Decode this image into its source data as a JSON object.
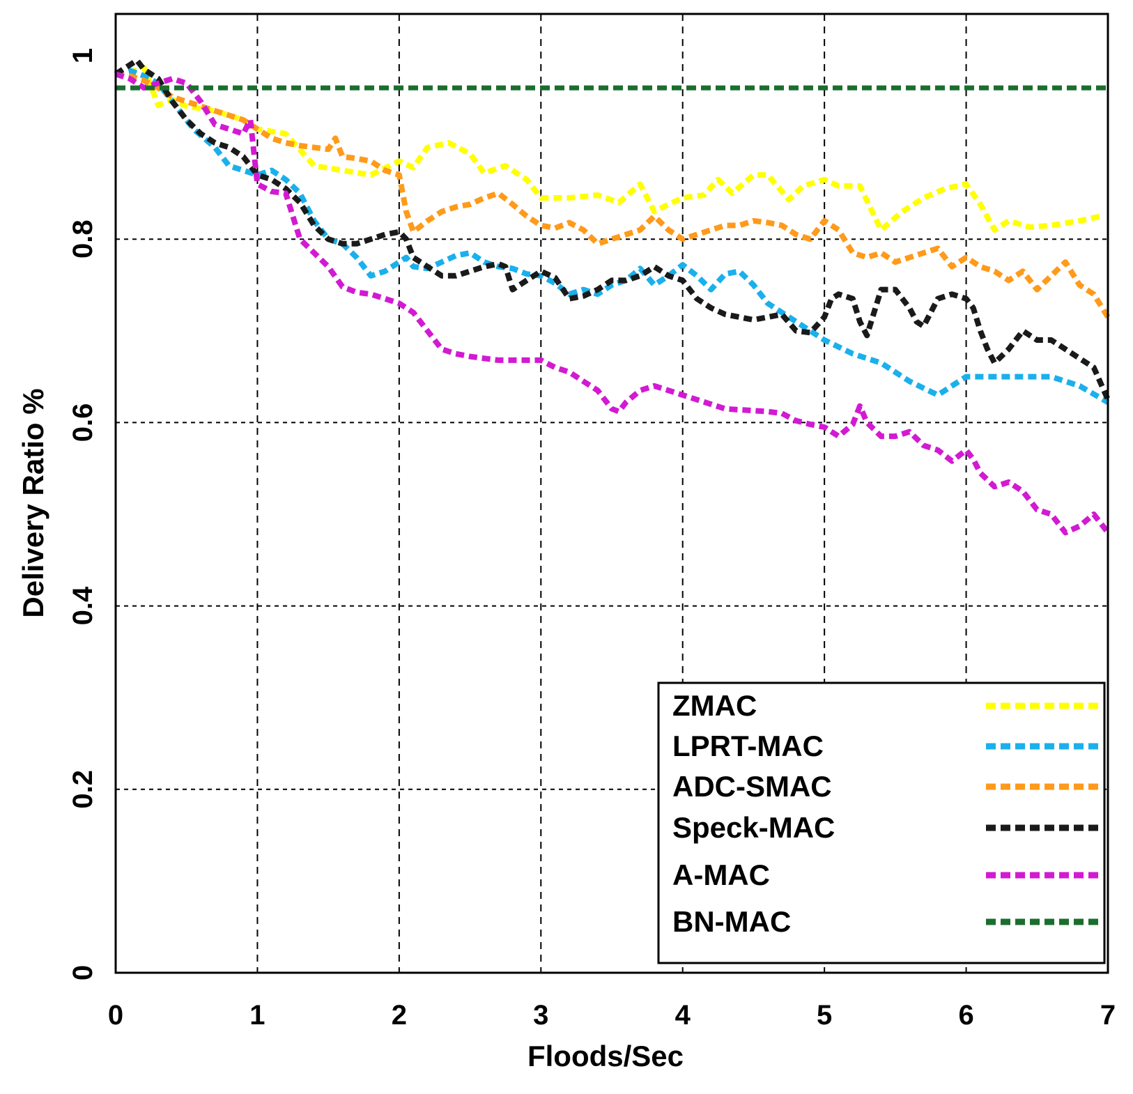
{
  "chart_data": {
    "type": "line",
    "title": "",
    "xlabel": "Floods/Sec",
    "ylabel": "Delivery Ratio %",
    "xlim": [
      0,
      7
    ],
    "ylim": [
      0,
      1.0
    ],
    "x_ticks": [
      "0",
      "1",
      "2",
      "3",
      "4",
      "5",
      "6",
      "7"
    ],
    "y_ticks": [
      "0",
      "0.2",
      "0.4",
      "0.6",
      "0.8",
      "1"
    ],
    "grid": true,
    "legend_position": "bottom-right",
    "series": [
      {
        "name": "ZMAC",
        "color": "#ffff00",
        "x": [
          0.0,
          0.1,
          0.2,
          0.3,
          0.4,
          0.5,
          0.7,
          0.9,
          1.0,
          1.2,
          1.4,
          1.6,
          1.8,
          2.0,
          2.1,
          2.2,
          2.35,
          2.5,
          2.6,
          2.75,
          2.9,
          3.0,
          3.2,
          3.4,
          3.55,
          3.7,
          3.8,
          3.9,
          4.0,
          4.15,
          4.25,
          4.35,
          4.5,
          4.6,
          4.75,
          4.85,
          5.0,
          5.1,
          5.25,
          5.4,
          5.55,
          5.7,
          5.85,
          6.0,
          6.1,
          6.2,
          6.3,
          6.45,
          6.6,
          6.8,
          6.95
        ],
        "values": [
          0.98,
          0.982,
          0.987,
          0.946,
          0.952,
          0.945,
          0.94,
          0.93,
          0.92,
          0.915,
          0.88,
          0.875,
          0.87,
          0.885,
          0.878,
          0.9,
          0.905,
          0.893,
          0.872,
          0.88,
          0.865,
          0.845,
          0.845,
          0.848,
          0.84,
          0.86,
          0.83,
          0.838,
          0.845,
          0.848,
          0.865,
          0.85,
          0.87,
          0.87,
          0.843,
          0.858,
          0.865,
          0.858,
          0.858,
          0.81,
          0.83,
          0.845,
          0.855,
          0.86,
          0.838,
          0.81,
          0.82,
          0.813,
          0.815,
          0.82,
          0.825
        ]
      },
      {
        "name": "LPRT-MAC",
        "color": "#1ab0ec",
        "x": [
          0.0,
          0.1,
          0.2,
          0.3,
          0.4,
          0.55,
          0.7,
          0.8,
          0.9,
          1.0,
          1.1,
          1.2,
          1.3,
          1.4,
          1.5,
          1.6,
          1.7,
          1.8,
          1.9,
          2.0,
          2.05,
          2.1,
          2.2,
          2.3,
          2.4,
          2.5,
          2.6,
          2.7,
          2.8,
          2.9,
          3.0,
          3.1,
          3.2,
          3.3,
          3.4,
          3.5,
          3.6,
          3.7,
          3.8,
          3.9,
          4.0,
          4.1,
          4.2,
          4.3,
          4.4,
          4.5,
          4.6,
          4.7,
          4.8,
          4.9,
          5.0,
          5.2,
          5.4,
          5.6,
          5.8,
          6.0,
          6.2,
          6.4,
          6.6,
          6.8,
          7.0
        ],
        "values": [
          0.98,
          0.984,
          0.978,
          0.97,
          0.95,
          0.92,
          0.9,
          0.88,
          0.875,
          0.87,
          0.875,
          0.865,
          0.85,
          0.82,
          0.8,
          0.795,
          0.78,
          0.76,
          0.765,
          0.775,
          0.78,
          0.77,
          0.768,
          0.775,
          0.782,
          0.785,
          0.775,
          0.77,
          0.768,
          0.762,
          0.76,
          0.752,
          0.74,
          0.745,
          0.74,
          0.75,
          0.755,
          0.768,
          0.75,
          0.76,
          0.772,
          0.76,
          0.745,
          0.762,
          0.765,
          0.75,
          0.73,
          0.72,
          0.71,
          0.7,
          0.69,
          0.675,
          0.665,
          0.645,
          0.63,
          0.65,
          0.65,
          0.65,
          0.65,
          0.64,
          0.622
        ]
      },
      {
        "name": "ADC-SMAC",
        "color": "#ff9a1a",
        "x": [
          0.0,
          0.1,
          0.2,
          0.3,
          0.4,
          0.5,
          0.6,
          0.7,
          0.8,
          0.9,
          1.0,
          1.1,
          1.2,
          1.3,
          1.4,
          1.5,
          1.55,
          1.6,
          1.7,
          1.8,
          1.9,
          2.0,
          2.05,
          2.1,
          2.2,
          2.3,
          2.4,
          2.5,
          2.6,
          2.7,
          2.8,
          2.9,
          3.0,
          3.1,
          3.2,
          3.3,
          3.4,
          3.5,
          3.6,
          3.7,
          3.8,
          3.9,
          4.0,
          4.1,
          4.2,
          4.3,
          4.4,
          4.5,
          4.6,
          4.7,
          4.8,
          4.9,
          5.0,
          5.1,
          5.2,
          5.3,
          5.4,
          5.5,
          5.6,
          5.7,
          5.8,
          5.9,
          6.0,
          6.1,
          6.2,
          6.3,
          6.4,
          6.5,
          6.6,
          6.7,
          6.8,
          6.9,
          7.0
        ],
        "values": [
          0.98,
          0.978,
          0.973,
          0.965,
          0.955,
          0.95,
          0.945,
          0.94,
          0.935,
          0.93,
          0.92,
          0.91,
          0.905,
          0.902,
          0.9,
          0.898,
          0.91,
          0.89,
          0.888,
          0.885,
          0.875,
          0.87,
          0.83,
          0.808,
          0.82,
          0.83,
          0.835,
          0.838,
          0.845,
          0.85,
          0.838,
          0.825,
          0.815,
          0.812,
          0.818,
          0.81,
          0.795,
          0.8,
          0.805,
          0.81,
          0.825,
          0.81,
          0.8,
          0.805,
          0.81,
          0.815,
          0.815,
          0.82,
          0.818,
          0.815,
          0.805,
          0.8,
          0.82,
          0.81,
          0.785,
          0.78,
          0.785,
          0.775,
          0.78,
          0.785,
          0.79,
          0.77,
          0.78,
          0.77,
          0.765,
          0.755,
          0.765,
          0.745,
          0.76,
          0.775,
          0.75,
          0.74,
          0.715
        ]
      },
      {
        "name": "Speck-MAC",
        "color": "#1a1a1a",
        "x": [
          0.0,
          0.1,
          0.15,
          0.2,
          0.3,
          0.4,
          0.5,
          0.6,
          0.7,
          0.8,
          0.9,
          1.0,
          1.1,
          1.2,
          1.3,
          1.4,
          1.5,
          1.6,
          1.7,
          1.8,
          1.9,
          2.0,
          2.05,
          2.1,
          2.2,
          2.3,
          2.4,
          2.5,
          2.6,
          2.7,
          2.75,
          2.8,
          2.9,
          3.0,
          3.1,
          3.2,
          3.3,
          3.4,
          3.5,
          3.6,
          3.7,
          3.8,
          3.9,
          4.0,
          4.1,
          4.2,
          4.3,
          4.4,
          4.5,
          4.6,
          4.7,
          4.8,
          4.9,
          5.0,
          5.05,
          5.1,
          5.2,
          5.25,
          5.3,
          5.4,
          5.5,
          5.6,
          5.65,
          5.7,
          5.8,
          5.9,
          6.0,
          6.05,
          6.1,
          6.15,
          6.2,
          6.3,
          6.4,
          6.5,
          6.6,
          6.7,
          6.8,
          6.9,
          7.0
        ],
        "values": [
          0.98,
          0.99,
          0.995,
          0.985,
          0.975,
          0.95,
          0.93,
          0.915,
          0.905,
          0.9,
          0.89,
          0.87,
          0.865,
          0.855,
          0.84,
          0.815,
          0.8,
          0.795,
          0.795,
          0.8,
          0.805,
          0.808,
          0.8,
          0.78,
          0.77,
          0.76,
          0.76,
          0.765,
          0.77,
          0.773,
          0.77,
          0.745,
          0.755,
          0.765,
          0.758,
          0.735,
          0.738,
          0.745,
          0.755,
          0.755,
          0.76,
          0.77,
          0.76,
          0.755,
          0.735,
          0.725,
          0.718,
          0.715,
          0.712,
          0.715,
          0.718,
          0.7,
          0.698,
          0.715,
          0.735,
          0.74,
          0.735,
          0.71,
          0.695,
          0.745,
          0.745,
          0.725,
          0.71,
          0.705,
          0.735,
          0.74,
          0.735,
          0.725,
          0.7,
          0.68,
          0.665,
          0.68,
          0.7,
          0.69,
          0.69,
          0.68,
          0.67,
          0.66,
          0.625
        ]
      },
      {
        "name": "A-MAC",
        "color": "#d21ad2",
        "x": [
          0.0,
          0.1,
          0.2,
          0.3,
          0.4,
          0.5,
          0.6,
          0.7,
          0.8,
          0.9,
          0.95,
          1.0,
          1.1,
          1.2,
          1.3,
          1.4,
          1.5,
          1.6,
          1.7,
          1.8,
          1.9,
          2.0,
          2.1,
          2.2,
          2.3,
          2.4,
          2.5,
          2.6,
          2.7,
          2.8,
          2.9,
          3.0,
          3.1,
          3.2,
          3.3,
          3.4,
          3.5,
          3.55,
          3.6,
          3.7,
          3.8,
          3.9,
          4.0,
          4.1,
          4.2,
          4.3,
          4.4,
          4.5,
          4.6,
          4.7,
          4.8,
          4.9,
          5.0,
          5.1,
          5.2,
          5.25,
          5.3,
          5.4,
          5.5,
          5.6,
          5.7,
          5.8,
          5.9,
          6.0,
          6.05,
          6.1,
          6.2,
          6.3,
          6.4,
          6.5,
          6.6,
          6.7,
          6.8,
          6.9,
          7.0
        ],
        "values": [
          0.98,
          0.975,
          0.965,
          0.97,
          0.975,
          0.97,
          0.95,
          0.925,
          0.92,
          0.915,
          0.93,
          0.86,
          0.852,
          0.85,
          0.8,
          0.785,
          0.77,
          0.748,
          0.742,
          0.74,
          0.735,
          0.73,
          0.72,
          0.7,
          0.68,
          0.675,
          0.672,
          0.67,
          0.668,
          0.668,
          0.668,
          0.668,
          0.66,
          0.655,
          0.645,
          0.635,
          0.615,
          0.612,
          0.622,
          0.635,
          0.64,
          0.635,
          0.63,
          0.625,
          0.62,
          0.615,
          0.614,
          0.613,
          0.612,
          0.61,
          0.602,
          0.598,
          0.595,
          0.585,
          0.598,
          0.618,
          0.6,
          0.585,
          0.585,
          0.59,
          0.575,
          0.57,
          0.558,
          0.57,
          0.56,
          0.545,
          0.53,
          0.535,
          0.525,
          0.505,
          0.5,
          0.48,
          0.487,
          0.5,
          0.48
        ]
      },
      {
        "name": "BN-MAC",
        "color": "#1a6e2e",
        "x": [
          0.0,
          7.0
        ],
        "values": [
          0.965,
          0.965
        ]
      }
    ]
  }
}
